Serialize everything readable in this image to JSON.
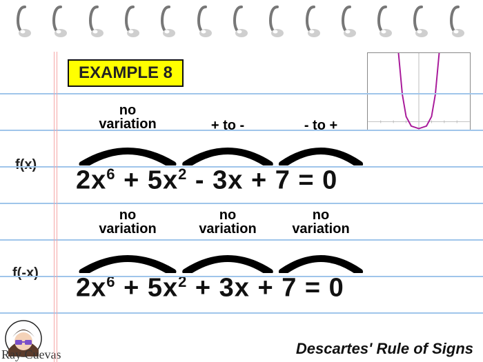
{
  "colors": {
    "rule_line": "#9fc5ea",
    "margin_line": "#f5a6a6",
    "label_bg": "#ffff00",
    "label_border": "#111111",
    "text": "#111111",
    "graph_curve": "#a8199a",
    "graph_axis": "#bbbbbb"
  },
  "binding": {
    "ring_count": 13
  },
  "rule_lines_y": [
    135,
    188,
    241,
    294,
    347,
    400,
    453
  ],
  "margin_lines_x": [
    78,
    82
  ],
  "example_label": "EXAMPLE 8",
  "graph": {
    "type": "line",
    "xlim": [
      -4,
      4
    ],
    "ylim": [
      -1,
      8
    ],
    "curve_points": [
      [
        -1.6,
        8
      ],
      [
        -1.3,
        3.2
      ],
      [
        -1.0,
        0.6
      ],
      [
        -0.6,
        -0.5
      ],
      [
        0,
        -0.8
      ],
      [
        0.6,
        -0.5
      ],
      [
        1.0,
        0.6
      ],
      [
        1.3,
        3.2
      ],
      [
        1.6,
        8
      ]
    ]
  },
  "fx": {
    "label": "f(x)",
    "annotations": [
      "no variation",
      "+ to -",
      "- to +"
    ],
    "terms": [
      "2x",
      "6",
      " + ",
      "5x",
      "2",
      " - ",
      "3x",
      " + ",
      "7 = 0"
    ]
  },
  "fnegx": {
    "label": "f(-x)",
    "annotations": [
      "no variation",
      "no variation",
      "no variation"
    ],
    "terms": [
      "2x",
      "6",
      " + ",
      "5x",
      "2",
      " + ",
      "3x",
      " + ",
      "7 = 0"
    ]
  },
  "signature": "Ray Cuevas",
  "footer": "Descartes' Rule of Signs"
}
